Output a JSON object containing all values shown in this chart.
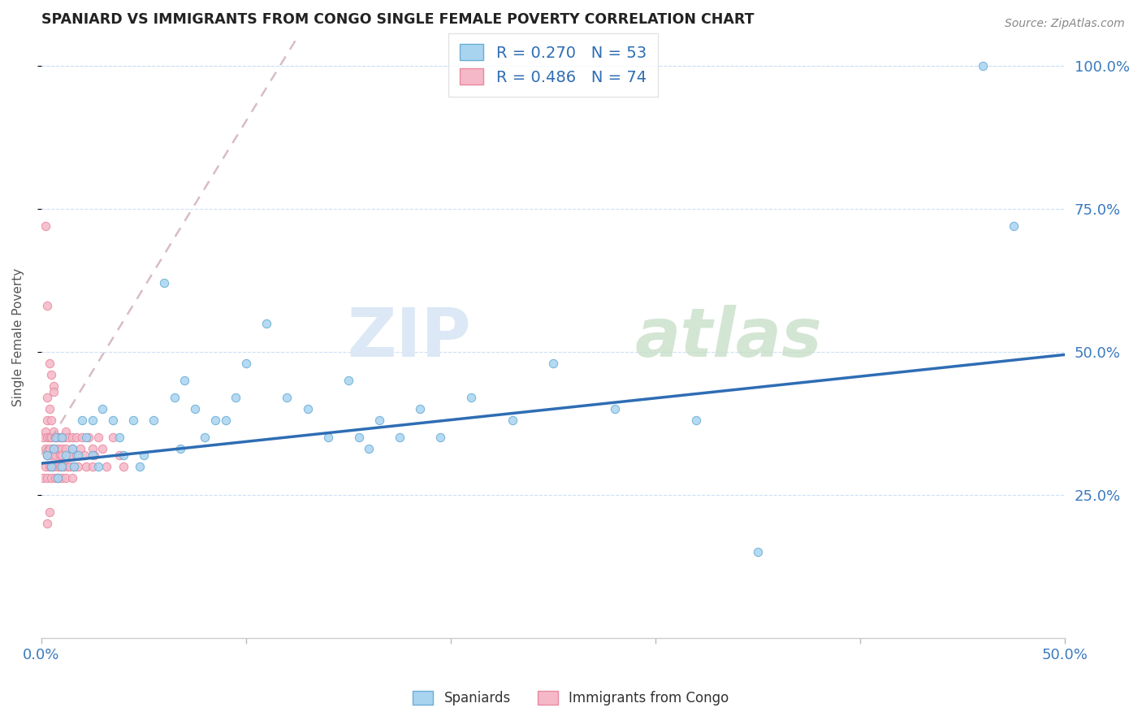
{
  "title": "SPANIARD VS IMMIGRANTS FROM CONGO SINGLE FEMALE POVERTY CORRELATION CHART",
  "source": "Source: ZipAtlas.com",
  "ylabel_label": "Single Female Poverty",
  "x_min": 0.0,
  "x_max": 0.5,
  "y_min": 0.0,
  "y_max": 1.05,
  "spaniard_color": "#a8d4f0",
  "spaniard_edge_color": "#6aaed6",
  "congo_color": "#f5b8c8",
  "congo_edge_color": "#e88aa0",
  "spaniard_R": 0.27,
  "spaniard_N": 53,
  "congo_R": 0.486,
  "congo_N": 74,
  "regression_line_color_spaniard": "#2e6db4",
  "regression_line_color_congo": "#d4aab8",
  "watermark_zip_color": "#dce8f5",
  "watermark_atlas_color": "#c8dfc8",
  "legend_R_color": "#2e6db4",
  "legend_N_color": "#2e6db4",
  "tick_label_color": "#3a7abf",
  "title_color": "#222222",
  "ylabel_color": "#555555",
  "source_color": "#888888",
  "blue_line_x0": 0.0,
  "blue_line_y0": 0.305,
  "blue_line_x1": 0.5,
  "blue_line_y1": 0.495,
  "congo_line_x0": 0.0,
  "congo_line_y0": 0.32,
  "congo_line_x1": 0.12,
  "congo_line_y1": 1.02,
  "spaniard_points_x": [
    0.003,
    0.005,
    0.006,
    0.007,
    0.008,
    0.01,
    0.01,
    0.012,
    0.015,
    0.016,
    0.018,
    0.02,
    0.022,
    0.025,
    0.025,
    0.028,
    0.03,
    0.035,
    0.038,
    0.04,
    0.045,
    0.048,
    0.05,
    0.055,
    0.06,
    0.065,
    0.068,
    0.07,
    0.075,
    0.08,
    0.085,
    0.09,
    0.095,
    0.1,
    0.11,
    0.12,
    0.13,
    0.14,
    0.15,
    0.155,
    0.16,
    0.165,
    0.175,
    0.185,
    0.195,
    0.21,
    0.23,
    0.25,
    0.28,
    0.32,
    0.35,
    0.46,
    0.475
  ],
  "spaniard_points_y": [
    0.32,
    0.3,
    0.33,
    0.35,
    0.28,
    0.3,
    0.35,
    0.32,
    0.33,
    0.3,
    0.32,
    0.38,
    0.35,
    0.32,
    0.38,
    0.3,
    0.4,
    0.38,
    0.35,
    0.32,
    0.38,
    0.3,
    0.32,
    0.38,
    0.62,
    0.42,
    0.33,
    0.45,
    0.4,
    0.35,
    0.38,
    0.38,
    0.42,
    0.48,
    0.55,
    0.42,
    0.4,
    0.35,
    0.45,
    0.35,
    0.33,
    0.38,
    0.35,
    0.4,
    0.35,
    0.42,
    0.38,
    0.48,
    0.4,
    0.38,
    0.15,
    1.0,
    0.72
  ],
  "congo_points_x": [
    0.001,
    0.001,
    0.002,
    0.002,
    0.002,
    0.003,
    0.003,
    0.003,
    0.003,
    0.004,
    0.004,
    0.004,
    0.005,
    0.005,
    0.005,
    0.005,
    0.006,
    0.006,
    0.006,
    0.007,
    0.007,
    0.007,
    0.008,
    0.008,
    0.008,
    0.008,
    0.009,
    0.009,
    0.009,
    0.01,
    0.01,
    0.01,
    0.01,
    0.011,
    0.011,
    0.012,
    0.012,
    0.012,
    0.013,
    0.013,
    0.014,
    0.014,
    0.015,
    0.015,
    0.015,
    0.016,
    0.017,
    0.017,
    0.018,
    0.019,
    0.02,
    0.021,
    0.022,
    0.023,
    0.025,
    0.025,
    0.026,
    0.028,
    0.03,
    0.032,
    0.035,
    0.038,
    0.04,
    0.002,
    0.003,
    0.004,
    0.005,
    0.006,
    0.003,
    0.004,
    0.005,
    0.006,
    0.003,
    0.004
  ],
  "congo_points_y": [
    0.35,
    0.28,
    0.33,
    0.36,
    0.3,
    0.35,
    0.32,
    0.28,
    0.38,
    0.33,
    0.3,
    0.35,
    0.32,
    0.35,
    0.28,
    0.3,
    0.33,
    0.36,
    0.3,
    0.35,
    0.32,
    0.28,
    0.33,
    0.3,
    0.35,
    0.28,
    0.32,
    0.35,
    0.3,
    0.33,
    0.35,
    0.28,
    0.32,
    0.3,
    0.35,
    0.33,
    0.28,
    0.36,
    0.3,
    0.35,
    0.32,
    0.3,
    0.33,
    0.35,
    0.28,
    0.3,
    0.35,
    0.32,
    0.3,
    0.33,
    0.35,
    0.32,
    0.3,
    0.35,
    0.33,
    0.3,
    0.32,
    0.35,
    0.33,
    0.3,
    0.35,
    0.32,
    0.3,
    0.72,
    0.58,
    0.48,
    0.46,
    0.44,
    0.42,
    0.4,
    0.38,
    0.43,
    0.2,
    0.22
  ]
}
